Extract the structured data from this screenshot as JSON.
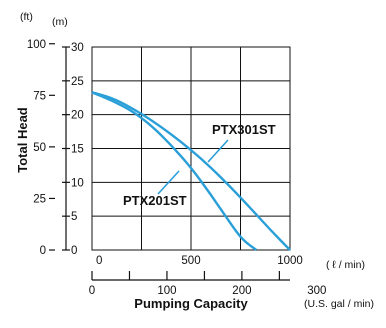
{
  "chart_data": {
    "type": "line",
    "ylabel": "Total Head",
    "xlabel": "Pumping Capacity",
    "y_units": {
      "feet": "(ft)",
      "meters": "(m)"
    },
    "x_units": {
      "lpm": "( ℓ / min)",
      "gpm": "(U.S. gal / min)"
    },
    "xlim": [
      0,
      1000
    ],
    "ylim": [
      0,
      30
    ],
    "x_ticks": [
      0,
      500,
      1000
    ],
    "y_ticks_m": [
      0,
      5,
      10,
      15,
      20,
      25,
      30
    ],
    "y_ticks_ft": [
      0,
      25,
      50,
      75,
      100
    ],
    "x_ticks_gpm": [
      0,
      100,
      200,
      300
    ],
    "grid": true,
    "series": [
      {
        "name": "PTX201ST",
        "x": [
          0,
          100,
          200,
          300,
          400,
          500,
          600,
          700,
          760,
          830
        ],
        "y": [
          23.3,
          22.1,
          20.6,
          18.4,
          15.5,
          12.2,
          8.2,
          3.9,
          1.5,
          0
        ]
      },
      {
        "name": "PTX301ST",
        "x": [
          0,
          100,
          200,
          300,
          400,
          500,
          600,
          700,
          800,
          900,
          1000
        ],
        "y": [
          23.3,
          22.5,
          21.0,
          19.2,
          17.1,
          14.8,
          12.2,
          9.3,
          6.2,
          3.0,
          0
        ]
      }
    ],
    "annotations": [
      {
        "text": "PTX301ST",
        "series": 1
      },
      {
        "text": "PTX201ST",
        "series": 0
      }
    ]
  },
  "colors": {
    "curve": "#2a9fd8",
    "grid": "#111111",
    "text": "#111111"
  }
}
